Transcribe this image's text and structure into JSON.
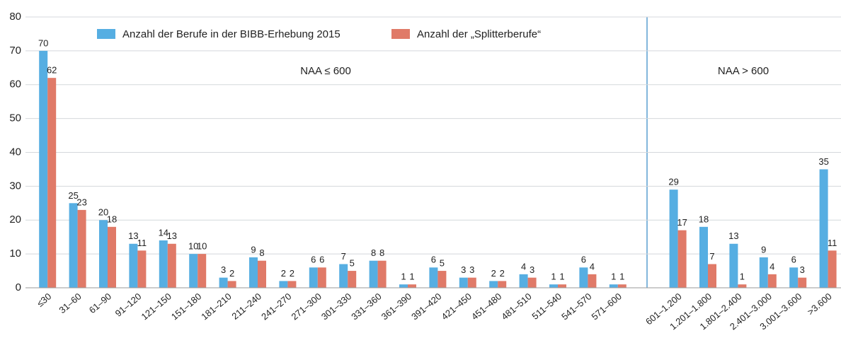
{
  "chart_data": {
    "type": "bar",
    "categories": [
      "≤30",
      "31–60",
      "61–90",
      "91–120",
      "121–150",
      "151–180",
      "181–210",
      "211–240",
      "241–270",
      "271–300",
      "301–330",
      "331–360",
      "361–390",
      "391–420",
      "421–450",
      "451–480",
      "481–510",
      "511–540",
      "541–570",
      "571–600",
      null,
      "601–1.200",
      "1.201–1.800",
      "1.801–2.400",
      "2.401–3.000",
      "3.001–3.600",
      ">3.600"
    ],
    "series": [
      {
        "name": "Anzahl der Berufe in der BIBB-Erhebung 2015",
        "color": "#56aee2",
        "values": [
          70,
          25,
          20,
          13,
          14,
          10,
          3,
          9,
          2,
          6,
          7,
          8,
          1,
          6,
          3,
          2,
          4,
          1,
          6,
          1,
          null,
          29,
          18,
          13,
          9,
          6,
          35
        ]
      },
      {
        "name": "Anzahl der „Splitterberufe“",
        "color": "#e07a68",
        "values": [
          62,
          23,
          18,
          11,
          13,
          10,
          2,
          8,
          2,
          6,
          5,
          8,
          1,
          5,
          3,
          2,
          3,
          1,
          4,
          1,
          null,
          17,
          7,
          1,
          4,
          3,
          11
        ]
      }
    ],
    "annotations": [
      "NAA ≤ 600",
      "NAA > 600"
    ],
    "ylim": [
      0,
      80
    ],
    "yticks": [
      0,
      10,
      20,
      30,
      40,
      50,
      60,
      70,
      80
    ],
    "grid": true
  }
}
